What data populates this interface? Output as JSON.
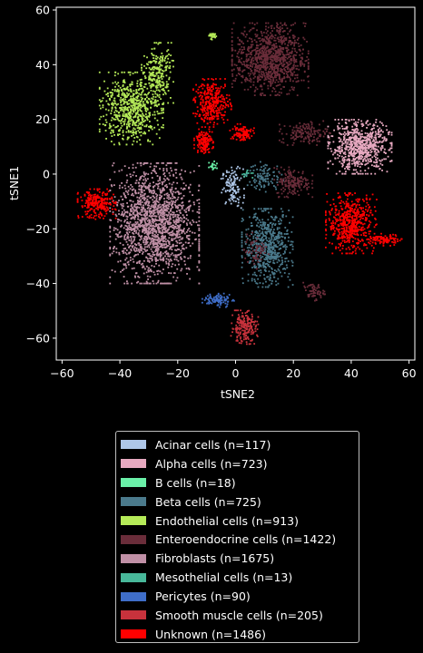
{
  "chart_data": {
    "type": "scatter",
    "title": "",
    "xlabel": "tSNE2",
    "ylabel": "tSNE1",
    "xlim": [
      -62,
      62
    ],
    "ylim": [
      -68,
      61
    ],
    "xticks": [
      -60,
      -40,
      -20,
      0,
      20,
      40,
      60
    ],
    "yticks": [
      -60,
      -40,
      -20,
      0,
      20,
      40,
      60
    ],
    "xtick_labels": [
      "−60",
      "−40",
      "−20",
      "0",
      "20",
      "40",
      "60"
    ],
    "ytick_labels": [
      "−60",
      "−40",
      "−20",
      "0",
      "20",
      "40",
      "60"
    ],
    "grid": false,
    "legend_position": "below",
    "background": "#000000",
    "series": [
      {
        "name": "Acinar cells (n=117)",
        "color": "#aec7e8",
        "clusters": [
          {
            "center": [
              -1,
              -5
            ],
            "spread": [
              1.8,
              3.5
            ],
            "n": 117
          }
        ]
      },
      {
        "name": "Alpha cells (n=723)",
        "color": "#e7a9c0",
        "clusters": [
          {
            "center": [
              43,
              10
            ],
            "spread": [
              5,
              4.5
            ],
            "n": 723
          }
        ]
      },
      {
        "name": "B cells (n=18)",
        "color": "#6af0a8",
        "clusters": [
          {
            "center": [
              -7.5,
              3
            ],
            "spread": [
              1,
              1.2
            ],
            "n": 18
          }
        ]
      },
      {
        "name": "Beta cells (n=725)",
        "color": "#4b7a8c",
        "clusters": [
          {
            "center": [
              11,
              -27
            ],
            "spread": [
              4,
              6.5
            ],
            "n": 625
          },
          {
            "center": [
              10,
              -1
            ],
            "spread": [
              3,
              2.5
            ],
            "n": 100
          }
        ]
      },
      {
        "name": "Endothelial cells (n=913)",
        "color": "#b5ea58",
        "clusters": [
          {
            "center": [
              -36,
              24
            ],
            "spread": [
              5,
              6
            ],
            "n": 650
          },
          {
            "center": [
              -27,
              37
            ],
            "spread": [
              2.5,
              5
            ],
            "n": 230
          },
          {
            "center": [
              -8,
              50.5
            ],
            "spread": [
              1,
              0.6
            ],
            "n": 33
          }
        ]
      },
      {
        "name": "Enteroendocrine cells (n=1422)",
        "color": "#6a2d3a",
        "clusters": [
          {
            "center": [
              12,
              42
            ],
            "spread": [
              6,
              6
            ],
            "n": 1000
          },
          {
            "center": [
              20,
              -3
            ],
            "spread": [
              3,
              2.5
            ],
            "n": 160
          },
          {
            "center": [
              24,
              15
            ],
            "spread": [
              4,
              2
            ],
            "n": 140
          },
          {
            "center": [
              27,
              -43
            ],
            "spread": [
              1.8,
              1.5
            ],
            "n": 60
          },
          {
            "center": [
              7,
              -28
            ],
            "spread": [
              2,
              3
            ],
            "n": 62
          }
        ]
      },
      {
        "name": "Fibroblasts (n=1675)",
        "color": "#c090a6",
        "clusters": [
          {
            "center": [
              -28,
              -18
            ],
            "spread": [
              7,
              10
            ],
            "n": 1675
          }
        ]
      },
      {
        "name": "Mesothelial cells (n=13)",
        "color": "#48b89a",
        "clusters": [
          {
            "center": [
              4,
              0
            ],
            "spread": [
              1,
              1
            ],
            "n": 13
          }
        ]
      },
      {
        "name": "Pericytes (n=90)",
        "color": "#3f6ec9",
        "clusters": [
          {
            "center": [
              -6,
              -46
            ],
            "spread": [
              2.5,
              1.2
            ],
            "n": 90
          }
        ]
      },
      {
        "name": "Smooth muscle cells (n=205)",
        "color": "#c8323c",
        "clusters": [
          {
            "center": [
              3,
              -56
            ],
            "spread": [
              2.2,
              2.8
            ],
            "n": 205
          }
        ]
      },
      {
        "name": "Unknown (n=1486)",
        "color": "#ff0000",
        "clusters": [
          {
            "center": [
              40,
              -18
            ],
            "spread": [
              4,
              5
            ],
            "n": 560
          },
          {
            "center": [
              -48,
              -11
            ],
            "spread": [
              3,
              2.5
            ],
            "n": 250
          },
          {
            "center": [
              -8,
              26
            ],
            "spread": [
              3,
              4
            ],
            "n": 340
          },
          {
            "center": [
              -11,
              12
            ],
            "spread": [
              1.5,
              2
            ],
            "n": 140
          },
          {
            "center": [
              2,
              15
            ],
            "spread": [
              2,
              1.5
            ],
            "n": 100
          },
          {
            "center": [
              52,
              -24
            ],
            "spread": [
              2.5,
              1
            ],
            "n": 96
          }
        ]
      }
    ]
  }
}
